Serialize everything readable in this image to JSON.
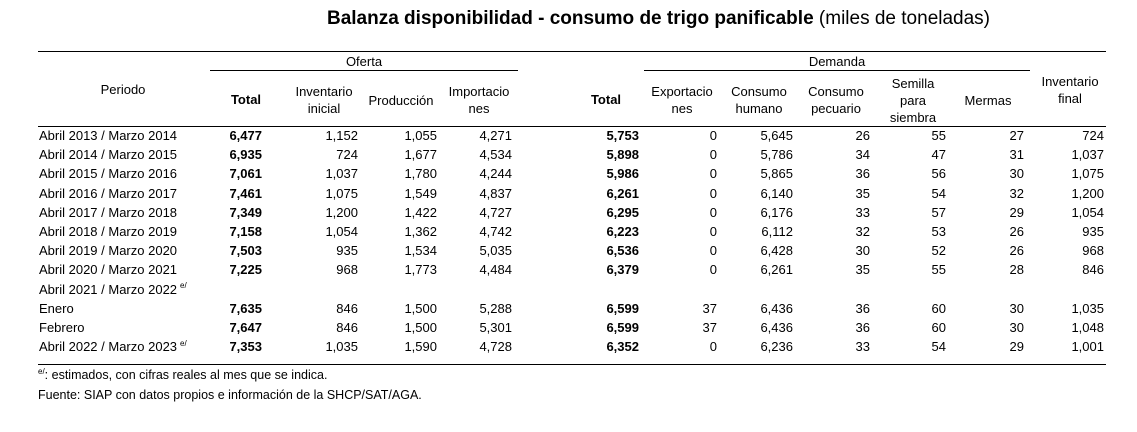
{
  "title": {
    "main": "Balanza disponibilidad - consumo de trigo panificable",
    "unit": "(miles de toneladas)"
  },
  "groups": {
    "oferta": "Oferta",
    "demanda": "Demanda"
  },
  "headers": {
    "periodo": "Periodo",
    "oferta_total": "Total",
    "inventario_inicial": "Inventario inicial",
    "produccion": "Producción",
    "importaciones": "Importacio nes",
    "demanda_total": "Total",
    "exportaciones": "Exportacio nes",
    "consumo_humano": "Consumo humano",
    "consumo_pecuario": "Consumo pecuario",
    "semilla": "Semilla para siembra",
    "mermas": "Mermas",
    "inventario_final": "Inventario final"
  },
  "rows": [
    {
      "periodo": "Abril 2013 / Marzo 2014",
      "sup": "",
      "oferta_total": "6,477",
      "inv_ini": "1,152",
      "produccion": "1,055",
      "importaciones": "4,271",
      "demanda_total": "5,753",
      "exportaciones": "0",
      "consumo_humano": "5,645",
      "consumo_pecuario": "26",
      "semilla": "55",
      "mermas": "27",
      "inv_final": "724"
    },
    {
      "periodo": "Abril 2014 / Marzo 2015",
      "sup": "",
      "oferta_total": "6,935",
      "inv_ini": "724",
      "produccion": "1,677",
      "importaciones": "4,534",
      "demanda_total": "5,898",
      "exportaciones": "0",
      "consumo_humano": "5,786",
      "consumo_pecuario": "34",
      "semilla": "47",
      "mermas": "31",
      "inv_final": "1,037"
    },
    {
      "periodo": "Abril 2015 / Marzo 2016",
      "sup": "",
      "oferta_total": "7,061",
      "inv_ini": "1,037",
      "produccion": "1,780",
      "importaciones": "4,244",
      "demanda_total": "5,986",
      "exportaciones": "0",
      "consumo_humano": "5,865",
      "consumo_pecuario": "36",
      "semilla": "56",
      "mermas": "30",
      "inv_final": "1,075"
    },
    {
      "periodo": "Abril 2016 / Marzo 2017",
      "sup": "",
      "oferta_total": "7,461",
      "inv_ini": "1,075",
      "produccion": "1,549",
      "importaciones": "4,837",
      "demanda_total": "6,261",
      "exportaciones": "0",
      "consumo_humano": "6,140",
      "consumo_pecuario": "35",
      "semilla": "54",
      "mermas": "32",
      "inv_final": "1,200"
    },
    {
      "periodo": "Abril 2017 / Marzo 2018",
      "sup": "",
      "oferta_total": "7,349",
      "inv_ini": "1,200",
      "produccion": "1,422",
      "importaciones": "4,727",
      "demanda_total": "6,295",
      "exportaciones": "0",
      "consumo_humano": "6,176",
      "consumo_pecuario": "33",
      "semilla": "57",
      "mermas": "29",
      "inv_final": "1,054"
    },
    {
      "periodo": "Abril 2018 / Marzo 2019",
      "sup": "",
      "oferta_total": "7,158",
      "inv_ini": "1,054",
      "produccion": "1,362",
      "importaciones": "4,742",
      "demanda_total": "6,223",
      "exportaciones": "0",
      "consumo_humano": "6,112",
      "consumo_pecuario": "32",
      "semilla": "53",
      "mermas": "26",
      "inv_final": "935"
    },
    {
      "periodo": "Abril 2019 / Marzo 2020",
      "sup": "",
      "oferta_total": "7,503",
      "inv_ini": "935",
      "produccion": "1,534",
      "importaciones": "5,035",
      "demanda_total": "6,536",
      "exportaciones": "0",
      "consumo_humano": "6,428",
      "consumo_pecuario": "30",
      "semilla": "52",
      "mermas": "26",
      "inv_final": "968"
    },
    {
      "periodo": "Abril 2020 / Marzo 2021",
      "sup": "",
      "oferta_total": "7,225",
      "inv_ini": "968",
      "produccion": "1,773",
      "importaciones": "4,484",
      "demanda_total": "6,379",
      "exportaciones": "0",
      "consumo_humano": "6,261",
      "consumo_pecuario": "35",
      "semilla": "55",
      "mermas": "28",
      "inv_final": "846"
    },
    {
      "periodo": "Abril 2021 / Marzo 2022",
      "sup": "e/",
      "oferta_total": "",
      "inv_ini": "",
      "produccion": "",
      "importaciones": "",
      "demanda_total": "",
      "exportaciones": "",
      "consumo_humano": "",
      "consumo_pecuario": "",
      "semilla": "",
      "mermas": "",
      "inv_final": ""
    },
    {
      "periodo": "Enero",
      "sup": "",
      "oferta_total": "7,635",
      "inv_ini": "846",
      "produccion": "1,500",
      "importaciones": "5,288",
      "demanda_total": "6,599",
      "exportaciones": "37",
      "consumo_humano": "6,436",
      "consumo_pecuario": "36",
      "semilla": "60",
      "mermas": "30",
      "inv_final": "1,035"
    },
    {
      "periodo": "Febrero",
      "sup": "",
      "oferta_total": "7,647",
      "inv_ini": "846",
      "produccion": "1,500",
      "importaciones": "5,301",
      "demanda_total": "6,599",
      "exportaciones": "37",
      "consumo_humano": "6,436",
      "consumo_pecuario": "36",
      "semilla": "60",
      "mermas": "30",
      "inv_final": "1,048"
    },
    {
      "periodo": "Abril 2022 / Marzo 2023",
      "sup": "e/",
      "oferta_total": "7,353",
      "inv_ini": "1,035",
      "produccion": "1,590",
      "importaciones": "4,728",
      "demanda_total": "6,352",
      "exportaciones": "0",
      "consumo_humano": "6,236",
      "consumo_pecuario": "33",
      "semilla": "54",
      "mermas": "29",
      "inv_final": "1,001"
    }
  ],
  "notes": {
    "estimados_sup": "e/",
    "estimados_text": ": estimados, con cifras reales al mes que se indica.",
    "fuente": "Fuente: SIAP con datos propios e información de la SHCP/SAT/AGA."
  }
}
